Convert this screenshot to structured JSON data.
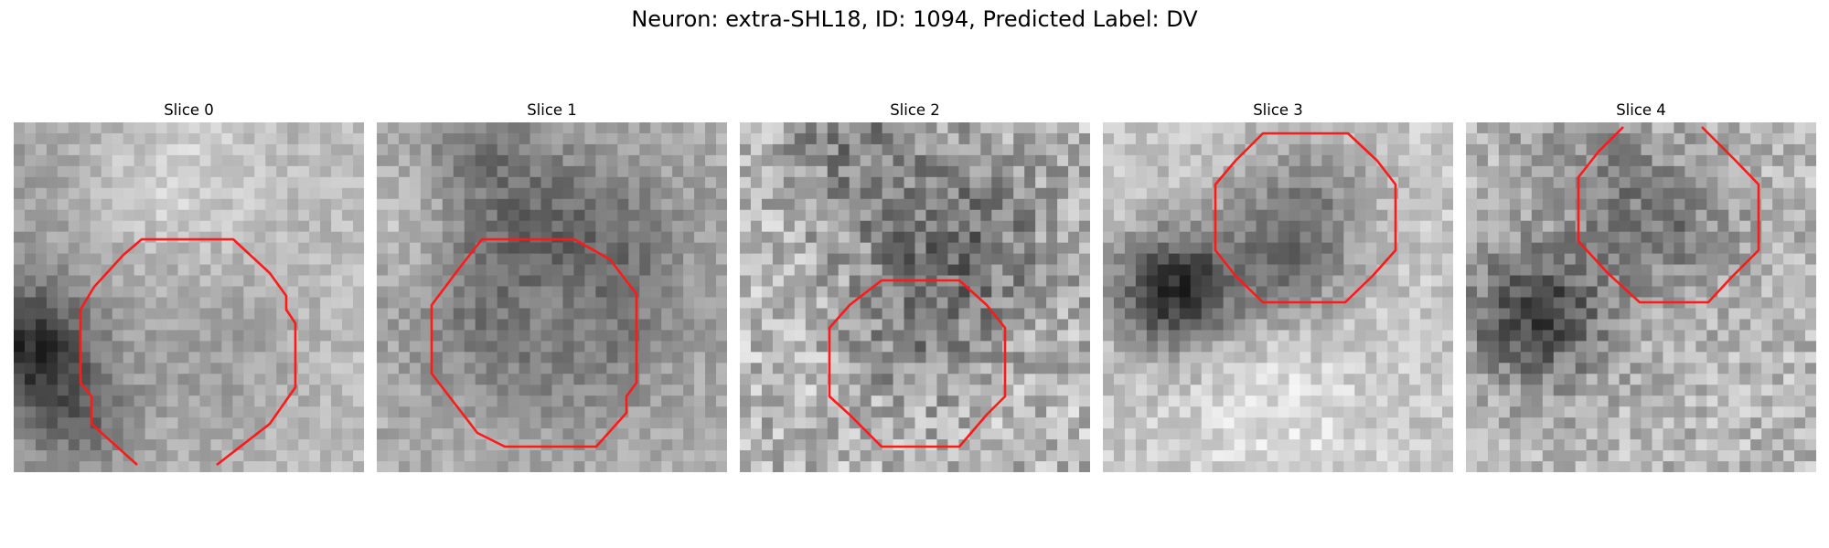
{
  "title": "Neuron: extra-SHL18, ID: 1094, Predicted Label: DV",
  "outline_color": "#ff1a1a",
  "slices": [
    {
      "label": "Slice 0",
      "dark_side": "left",
      "outline": "clipped-bottom"
    },
    {
      "label": "Slice 1",
      "dark_side": "center-ring",
      "outline": "octagon"
    },
    {
      "label": "Slice 2",
      "dark_side": "upper-center",
      "outline": "octagon"
    },
    {
      "label": "Slice 3",
      "dark_side": "left-center",
      "outline": "octagon"
    },
    {
      "label": "Slice 4",
      "dark_side": "left",
      "outline": "clipped-top"
    }
  ]
}
